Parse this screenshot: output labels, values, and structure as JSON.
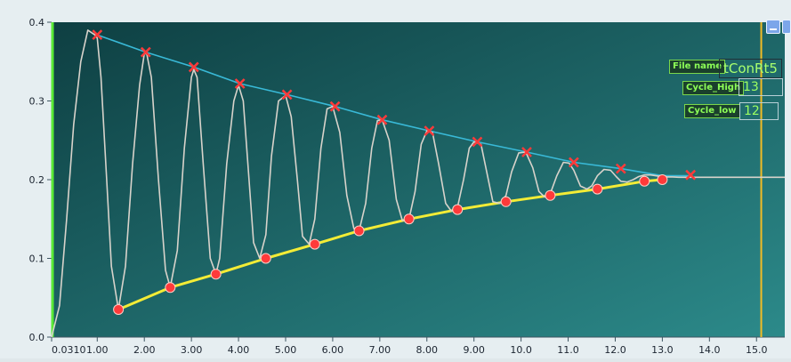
{
  "panel": {
    "file_name_label": "File name",
    "file_name_value": "tConRt5",
    "cycle_high_label": "Cycle_High",
    "cycle_high_value": "13",
    "cycle_low_label": "Cycle_low",
    "cycle_low_value": "12"
  },
  "window_controls": {
    "minimize_icon": "minimize-icon",
    "restore_icon": "restore-icon"
  },
  "colors": {
    "plot_bg_start": "#0e3f42",
    "plot_bg_end": "#2c8a8a",
    "signal": "#d8d3cb",
    "upper_envelope": "#39b9d7",
    "lower_envelope": "#f3ec36",
    "marker": "#ff3a3a",
    "green_cursor": "#59ea36",
    "yellow_cursor": "#f3bc24"
  },
  "chart_data": {
    "type": "line",
    "x_tick_labels": [
      "0.0310",
      "1.00",
      "2.00",
      "3.00",
      "4.00",
      "5.00",
      "6.00",
      "7.00",
      "8.00",
      "9.00",
      "10.0",
      "11.0",
      "12.0",
      "13.0",
      "14.0",
      "15.0"
    ],
    "y_tick_labels": [
      "0.4",
      "0.3",
      "0.2",
      "0.1",
      "0.0"
    ],
    "xlim": [
      0.031,
      15.6
    ],
    "ylim": [
      0.0,
      0.4
    ],
    "cursors": [
      {
        "name": "green",
        "x": 0.05
      },
      {
        "name": "yellow",
        "x": 15.1
      }
    ],
    "series": [
      {
        "role": "signal",
        "x": [
          0.031,
          0.2,
          0.35,
          0.5,
          0.65,
          0.8,
          0.95,
          1.0,
          1.08,
          1.2,
          1.3,
          1.45,
          1.6,
          1.75,
          1.9,
          2.0,
          2.05,
          2.15,
          2.3,
          2.45,
          2.55,
          2.7,
          2.85,
          3.0,
          3.05,
          3.12,
          3.25,
          3.4,
          3.52,
          3.6,
          3.75,
          3.9,
          4.0,
          4.1,
          4.2,
          4.32,
          4.45,
          4.58,
          4.7,
          4.85,
          5.0,
          5.12,
          5.25,
          5.36,
          5.5,
          5.62,
          5.75,
          5.88,
          6.0,
          6.15,
          6.3,
          6.45,
          6.56,
          6.7,
          6.83,
          6.95,
          7.05,
          7.2,
          7.35,
          7.48,
          7.62,
          7.75,
          7.88,
          8.0,
          8.12,
          8.25,
          8.4,
          8.52,
          8.65,
          8.78,
          8.9,
          9.0,
          9.15,
          9.27,
          9.4,
          9.55,
          9.68,
          9.8,
          9.95,
          10.1,
          10.25,
          10.38,
          10.5,
          10.62,
          10.76,
          10.9,
          11.02,
          11.12,
          11.26,
          11.4,
          11.5,
          11.62,
          11.76,
          11.9,
          12.02,
          12.12,
          12.25,
          12.38,
          12.5,
          12.62,
          12.75,
          12.86,
          12.98,
          13.1,
          13.22,
          13.35,
          13.5,
          13.7,
          14.0,
          14.5,
          15.0,
          15.6
        ],
        "y": [
          0.0,
          0.04,
          0.15,
          0.27,
          0.35,
          0.39,
          0.384,
          0.38,
          0.33,
          0.2,
          0.09,
          0.035,
          0.09,
          0.22,
          0.32,
          0.36,
          0.36,
          0.33,
          0.2,
          0.085,
          0.063,
          0.11,
          0.24,
          0.33,
          0.34,
          0.33,
          0.22,
          0.1,
          0.08,
          0.1,
          0.22,
          0.3,
          0.32,
          0.3,
          0.22,
          0.12,
          0.1,
          0.13,
          0.23,
          0.3,
          0.307,
          0.28,
          0.2,
          0.128,
          0.118,
          0.15,
          0.24,
          0.29,
          0.293,
          0.26,
          0.18,
          0.138,
          0.135,
          0.17,
          0.24,
          0.275,
          0.276,
          0.25,
          0.175,
          0.148,
          0.15,
          0.185,
          0.245,
          0.262,
          0.26,
          0.22,
          0.17,
          0.16,
          0.165,
          0.2,
          0.24,
          0.248,
          0.245,
          0.21,
          0.172,
          0.17,
          0.18,
          0.21,
          0.234,
          0.235,
          0.215,
          0.185,
          0.178,
          0.182,
          0.205,
          0.222,
          0.221,
          0.212,
          0.192,
          0.188,
          0.192,
          0.205,
          0.213,
          0.212,
          0.204,
          0.198,
          0.197,
          0.2,
          0.204,
          0.206,
          0.206,
          0.205,
          0.204,
          0.2035,
          0.2035,
          0.203,
          0.203,
          0.203,
          0.203,
          0.203,
          0.203,
          0.203
        ]
      },
      {
        "role": "upper_envelope",
        "x": [
          1.0,
          2.03,
          3.05,
          4.03,
          5.03,
          6.05,
          7.05,
          8.05,
          9.07,
          10.12,
          11.12,
          12.12,
          13.0,
          13.6
        ],
        "y": [
          0.384,
          0.362,
          0.343,
          0.322,
          0.308,
          0.293,
          0.276,
          0.262,
          0.248,
          0.235,
          0.222,
          0.214,
          0.205,
          0.205
        ]
      },
      {
        "role": "lower_envelope",
        "x": [
          1.45,
          2.55,
          3.52,
          4.58,
          5.62,
          6.56,
          7.62,
          8.65,
          9.68,
          10.62,
          11.62,
          12.62,
          13.0
        ],
        "y": [
          0.035,
          0.063,
          0.08,
          0.1,
          0.118,
          0.135,
          0.15,
          0.162,
          0.172,
          0.18,
          0.188,
          0.198,
          0.2
        ]
      }
    ],
    "peak_markers": {
      "x": [
        1.0,
        2.03,
        3.05,
        4.03,
        5.03,
        6.05,
        7.05,
        8.05,
        9.07,
        10.12,
        11.12,
        12.12,
        13.6
      ],
      "y": [
        0.384,
        0.362,
        0.343,
        0.322,
        0.308,
        0.293,
        0.276,
        0.262,
        0.248,
        0.235,
        0.222,
        0.214,
        0.206
      ]
    },
    "valley_markers": {
      "x": [
        1.45,
        2.55,
        3.52,
        4.58,
        5.62,
        6.56,
        7.62,
        8.65,
        9.68,
        10.62,
        11.62,
        12.62,
        13.0
      ],
      "y": [
        0.035,
        0.063,
        0.08,
        0.1,
        0.118,
        0.135,
        0.15,
        0.162,
        0.172,
        0.18,
        0.188,
        0.198,
        0.2
      ]
    },
    "grid": false,
    "legend": "none"
  }
}
